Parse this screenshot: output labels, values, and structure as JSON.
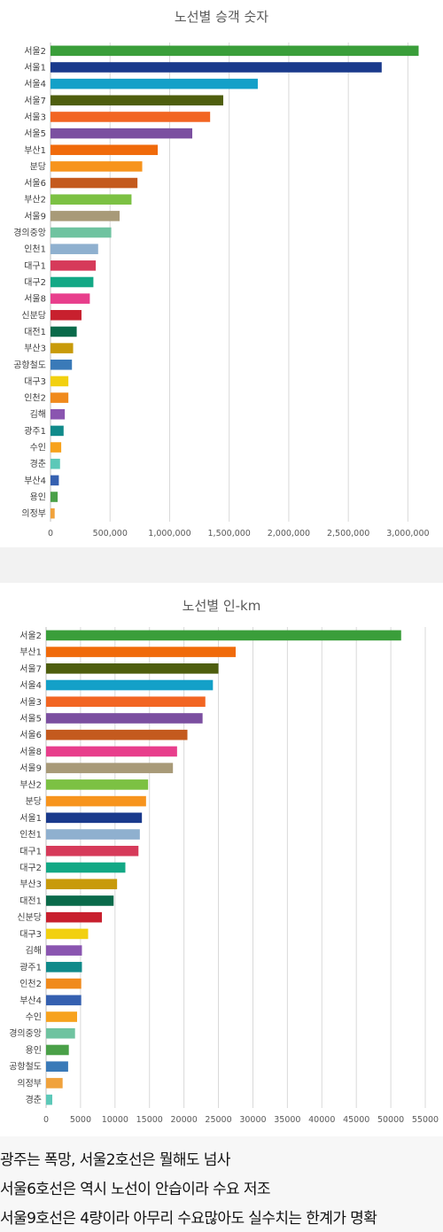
{
  "chart_data": [
    {
      "type": "bar",
      "orientation": "horizontal",
      "title": "노선별 승객 숫자",
      "xlabel": "",
      "ylabel": "",
      "xlim": [
        0,
        3250000
      ],
      "xticks": [
        0,
        500000,
        1000000,
        1500000,
        2000000,
        2500000,
        3000000
      ],
      "xtick_labels": [
        "0",
        "500,000",
        "1,000,000",
        "1,500,000",
        "2,000,000",
        "2,500,000",
        "3,000,000"
      ],
      "grid": true,
      "categories": [
        "서울2",
        "서울1",
        "서울4",
        "서울7",
        "서울3",
        "서울5",
        "부산1",
        "분당",
        "서울6",
        "부산2",
        "서울9",
        "경의중앙",
        "인천1",
        "대구1",
        "대구2",
        "서울8",
        "신분당",
        "대전1",
        "부산3",
        "공항철도",
        "대구3",
        "인천2",
        "김해",
        "광주1",
        "수인",
        "경춘",
        "부산4",
        "용인",
        "의정부"
      ],
      "values": [
        3090000,
        2780000,
        1740000,
        1450000,
        1340000,
        1190000,
        900000,
        770000,
        730000,
        680000,
        580000,
        510000,
        400000,
        380000,
        360000,
        330000,
        260000,
        220000,
        190000,
        180000,
        150000,
        150000,
        120000,
        110000,
        90000,
        80000,
        70000,
        60000,
        35000
      ],
      "colors": [
        "#3a9e3a",
        "#1a3a8c",
        "#14a0c8",
        "#4e5e0e",
        "#f26522",
        "#7b4fa0",
        "#f06a0a",
        "#f7941d",
        "#c45a1e",
        "#7cc143",
        "#a89a78",
        "#6fc3a0",
        "#8fb0cf",
        "#d63a5a",
        "#13a885",
        "#e83e8c",
        "#c8202e",
        "#0a6a4a",
        "#c89a0a",
        "#3a7ab8",
        "#f2d010",
        "#f08a1c",
        "#8a55b0",
        "#108a8a",
        "#f7a21d",
        "#5cc8b8",
        "#3560b0",
        "#4aa048",
        "#f0a23c"
      ]
    },
    {
      "type": "bar",
      "orientation": "horizontal",
      "title": "노선별 인-km",
      "xlabel": "",
      "ylabel": "",
      "xlim": [
        0,
        55000
      ],
      "xticks": [
        0,
        5000,
        10000,
        15000,
        20000,
        25000,
        30000,
        35000,
        40000,
        45000,
        50000,
        55000
      ],
      "xtick_labels": [
        "0",
        "5000",
        "10000",
        "15000",
        "20000",
        "25000",
        "30000",
        "35000",
        "40000",
        "45000",
        "50000",
        "55000"
      ],
      "grid": true,
      "categories": [
        "서울2",
        "부산1",
        "서울7",
        "서울4",
        "서울3",
        "서울5",
        "서울6",
        "서울8",
        "서울9",
        "부산2",
        "분당",
        "서울1",
        "인천1",
        "대구1",
        "대구2",
        "부산3",
        "대전1",
        "신분당",
        "대구3",
        "김해",
        "광주1",
        "인천2",
        "부산4",
        "수인",
        "경의중앙",
        "용인",
        "공항철도",
        "의정부",
        "경춘"
      ],
      "values": [
        51500,
        27500,
        25000,
        24200,
        23100,
        22700,
        20500,
        19000,
        18400,
        14800,
        14500,
        13900,
        13600,
        13400,
        11500,
        10300,
        9800,
        8100,
        6100,
        5200,
        5200,
        5100,
        5100,
        4500,
        4200,
        3300,
        3200,
        2400,
        900
      ],
      "colors": [
        "#3a9e3a",
        "#f06a0a",
        "#4e5e0e",
        "#14a0c8",
        "#f26522",
        "#7b4fa0",
        "#c45a1e",
        "#e83e8c",
        "#a89a78",
        "#7cc143",
        "#f7941d",
        "#1a3a8c",
        "#8fb0cf",
        "#d63a5a",
        "#13a885",
        "#c89a0a",
        "#0a6a4a",
        "#c8202e",
        "#f2d010",
        "#8a55b0",
        "#108a8a",
        "#f08a1c",
        "#3560b0",
        "#f7a21d",
        "#6fc3a0",
        "#4aa048",
        "#3a7ab8",
        "#f0a23c",
        "#5cc8b8"
      ]
    }
  ],
  "caption": {
    "lines": [
      "광주는 폭망, 서울2호선은 뭘해도 넘사",
      "서울6호선은 역시 노선이 안습이라 수요 저조",
      "서울9호선은 4량이라 아무리 수요많아도 실수치는 한계가 명확"
    ]
  }
}
